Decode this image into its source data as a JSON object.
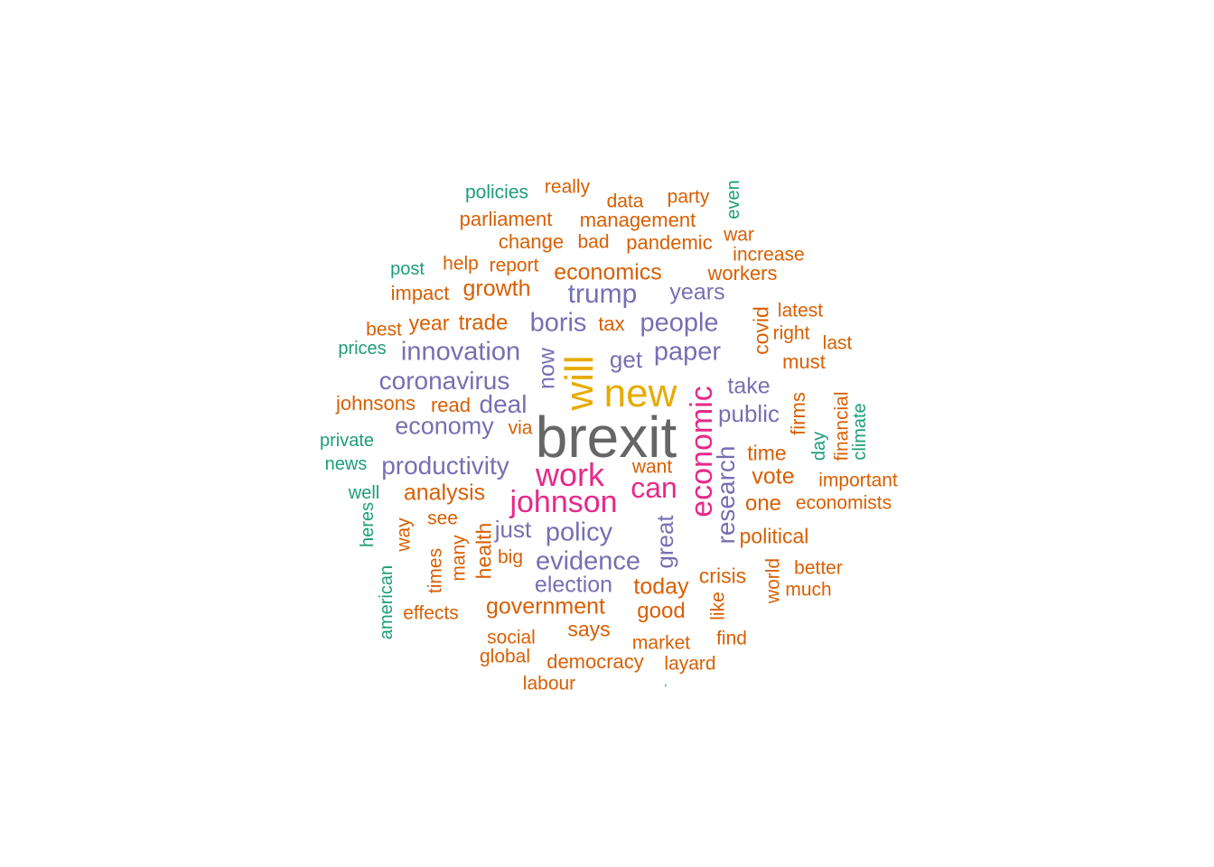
{
  "words": [
    {
      "text": "brexit",
      "group": 1
    },
    {
      "text": "new",
      "group": 2
    },
    {
      "text": "will",
      "group": 2
    },
    {
      "text": "economic",
      "group": 3
    },
    {
      "text": "johnson",
      "group": 3
    },
    {
      "text": "work",
      "group": 3
    },
    {
      "text": "can",
      "group": 3
    },
    {
      "text": "research",
      "group": 4
    },
    {
      "text": "innovation",
      "group": 4
    },
    {
      "text": "coronavirus",
      "group": 4
    },
    {
      "text": "productivity",
      "group": 4
    },
    {
      "text": "evidence",
      "group": 4
    },
    {
      "text": "trump",
      "group": 4
    },
    {
      "text": "boris",
      "group": 4
    },
    {
      "text": "people",
      "group": 4
    },
    {
      "text": "paper",
      "group": 4
    },
    {
      "text": "policy",
      "group": 4
    },
    {
      "text": "deal",
      "group": 4
    },
    {
      "text": "economy",
      "group": 4
    },
    {
      "text": "public",
      "group": 4
    },
    {
      "text": "now",
      "group": 4
    },
    {
      "text": "great",
      "group": 4
    },
    {
      "text": "election",
      "group": 4
    },
    {
      "text": "years",
      "group": 4
    },
    {
      "text": "take",
      "group": 4
    },
    {
      "text": "just",
      "group": 4
    },
    {
      "text": "get",
      "group": 4
    },
    {
      "text": "economics",
      "group": 5
    },
    {
      "text": "government",
      "group": 5
    },
    {
      "text": "analysis",
      "group": 5
    },
    {
      "text": "growth",
      "group": 5
    },
    {
      "text": "vote",
      "group": 5
    },
    {
      "text": "today",
      "group": 5
    },
    {
      "text": "one",
      "group": 5
    },
    {
      "text": "trade",
      "group": 5
    },
    {
      "text": "political",
      "group": 5
    },
    {
      "text": "crisis",
      "group": 5
    },
    {
      "text": "covid",
      "group": 5
    },
    {
      "text": "time",
      "group": 5
    },
    {
      "text": "good",
      "group": 5
    },
    {
      "text": "workers",
      "group": 5
    },
    {
      "text": "firms",
      "group": 5
    },
    {
      "text": "must",
      "group": 5
    },
    {
      "text": "year",
      "group": 5
    },
    {
      "text": "says",
      "group": 5
    },
    {
      "text": "health",
      "group": 5
    },
    {
      "text": "management",
      "group": 5
    },
    {
      "text": "parliament",
      "group": 5
    },
    {
      "text": "pandemic",
      "group": 5
    },
    {
      "text": "change",
      "group": 5
    },
    {
      "text": "increase",
      "group": 5
    },
    {
      "text": "impact",
      "group": 5
    },
    {
      "text": "democracy",
      "group": 5
    },
    {
      "text": "johnsons",
      "group": 5
    },
    {
      "text": "read",
      "group": 5
    },
    {
      "text": "tax",
      "group": 5
    },
    {
      "text": "want",
      "group": 5
    },
    {
      "text": "economists",
      "group": 5
    },
    {
      "text": "important",
      "group": 5
    },
    {
      "text": "financial",
      "group": 5
    },
    {
      "text": "latest",
      "group": 5
    },
    {
      "text": "right",
      "group": 5
    },
    {
      "text": "last",
      "group": 5
    },
    {
      "text": "report",
      "group": 5
    },
    {
      "text": "help",
      "group": 5
    },
    {
      "text": "best",
      "group": 5
    },
    {
      "text": "data",
      "group": 5
    },
    {
      "text": "party",
      "group": 5
    },
    {
      "text": "really",
      "group": 5
    },
    {
      "text": "bad",
      "group": 5
    },
    {
      "text": "war",
      "group": 5
    },
    {
      "text": "see",
      "group": 5
    },
    {
      "text": "way",
      "group": 5
    },
    {
      "text": "many",
      "group": 5
    },
    {
      "text": "times",
      "group": 5
    },
    {
      "text": "big",
      "group": 5
    },
    {
      "text": "social",
      "group": 5
    },
    {
      "text": "global",
      "group": 5
    },
    {
      "text": "labour",
      "group": 5
    },
    {
      "text": "market",
      "group": 5
    },
    {
      "text": "layard",
      "group": 5
    },
    {
      "text": "find",
      "group": 5
    },
    {
      "text": "like",
      "group": 5
    },
    {
      "text": "world",
      "group": 5
    },
    {
      "text": "better",
      "group": 5
    },
    {
      "text": "much",
      "group": 5
    },
    {
      "text": "effects",
      "group": 5
    },
    {
      "text": "via",
      "group": 5
    },
    {
      "text": "policies",
      "group": 6
    },
    {
      "text": "even",
      "group": 6
    },
    {
      "text": "post",
      "group": 6
    },
    {
      "text": "prices",
      "group": 6
    },
    {
      "text": "private",
      "group": 6
    },
    {
      "text": "news",
      "group": 6
    },
    {
      "text": "well",
      "group": 6
    },
    {
      "text": "heres",
      "group": 6
    },
    {
      "text": "american",
      "group": 6
    },
    {
      "text": "day",
      "group": 6
    },
    {
      "text": "climate",
      "group": 6
    },
    {
      "text": "'",
      "group": 6
    }
  ]
}
